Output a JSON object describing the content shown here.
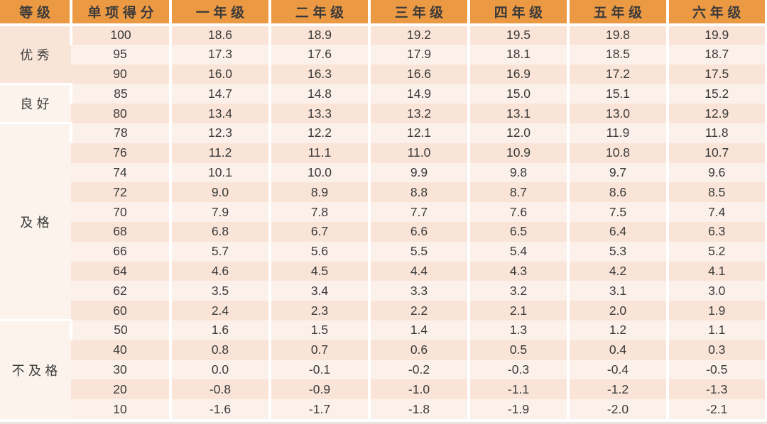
{
  "colors": {
    "header_bg": "#EC9944",
    "header_text": "#FDF5E6",
    "row_peach": "#F9E4D7",
    "row_light": "#FCF1EA",
    "grade_excellent_bg": "#F8E5D8",
    "grade_cell_bg": "#FBF3EC",
    "cell_text": "#3A3A3A",
    "separator": "#FFFFFF",
    "bottom_strip": "#E9E3DF"
  },
  "chart_data": {
    "type": "table",
    "columns": [
      "等级",
      "单项得分",
      "一年级",
      "二年级",
      "三年级",
      "四年级",
      "五年级",
      "六年级"
    ],
    "groups": [
      {
        "label": "优秀",
        "rows": [
          {
            "score": "100",
            "values": [
              "18.6",
              "18.9",
              "19.2",
              "19.5",
              "19.8",
              "19.9"
            ]
          },
          {
            "score": "95",
            "values": [
              "17.3",
              "17.6",
              "17.9",
              "18.1",
              "18.5",
              "18.7"
            ]
          },
          {
            "score": "90",
            "values": [
              "16.0",
              "16.3",
              "16.6",
              "16.9",
              "17.2",
              "17.5"
            ]
          }
        ]
      },
      {
        "label": "良好",
        "rows": [
          {
            "score": "85",
            "values": [
              "14.7",
              "14.8",
              "14.9",
              "15.0",
              "15.1",
              "15.2"
            ]
          },
          {
            "score": "80",
            "values": [
              "13.4",
              "13.3",
              "13.2",
              "13.1",
              "13.0",
              "12.9"
            ]
          }
        ]
      },
      {
        "label": "及格",
        "rows": [
          {
            "score": "78",
            "values": [
              "12.3",
              "12.2",
              "12.1",
              "12.0",
              "11.9",
              "11.8"
            ]
          },
          {
            "score": "76",
            "values": [
              "11.2",
              "11.1",
              "11.0",
              "10.9",
              "10.8",
              "10.7"
            ]
          },
          {
            "score": "74",
            "values": [
              "10.1",
              "10.0",
              "9.9",
              "9.8",
              "9.7",
              "9.6"
            ]
          },
          {
            "score": "72",
            "values": [
              "9.0",
              "8.9",
              "8.8",
              "8.7",
              "8.6",
              "8.5"
            ]
          },
          {
            "score": "70",
            "values": [
              "7.9",
              "7.8",
              "7.7",
              "7.6",
              "7.5",
              "7.4"
            ]
          },
          {
            "score": "68",
            "values": [
              "6.8",
              "6.7",
              "6.6",
              "6.5",
              "6.4",
              "6.3"
            ]
          },
          {
            "score": "66",
            "values": [
              "5.7",
              "5.6",
              "5.5",
              "5.4",
              "5.3",
              "5.2"
            ]
          },
          {
            "score": "64",
            "values": [
              "4.6",
              "4.5",
              "4.4",
              "4.3",
              "4.2",
              "4.1"
            ]
          },
          {
            "score": "62",
            "values": [
              "3.5",
              "3.4",
              "3.3",
              "3.2",
              "3.1",
              "3.0"
            ]
          },
          {
            "score": "60",
            "values": [
              "2.4",
              "2.3",
              "2.2",
              "2.1",
              "2.0",
              "1.9"
            ]
          }
        ]
      },
      {
        "label": "不及格",
        "rows": [
          {
            "score": "50",
            "values": [
              "1.6",
              "1.5",
              "1.4",
              "1.3",
              "1.2",
              "1.1"
            ]
          },
          {
            "score": "40",
            "values": [
              "0.8",
              "0.7",
              "0.6",
              "0.5",
              "0.4",
              "0.3"
            ]
          },
          {
            "score": "30",
            "values": [
              "0.0",
              "-0.1",
              "-0.2",
              "-0.3",
              "-0.4",
              "-0.5"
            ]
          },
          {
            "score": "20",
            "values": [
              "-0.8",
              "-0.9",
              "-1.0",
              "-1.1",
              "-1.2",
              "-1.3"
            ]
          },
          {
            "score": "10",
            "values": [
              "-1.6",
              "-1.7",
              "-1.8",
              "-1.9",
              "-2.0",
              "-2.1"
            ]
          }
        ]
      }
    ]
  }
}
